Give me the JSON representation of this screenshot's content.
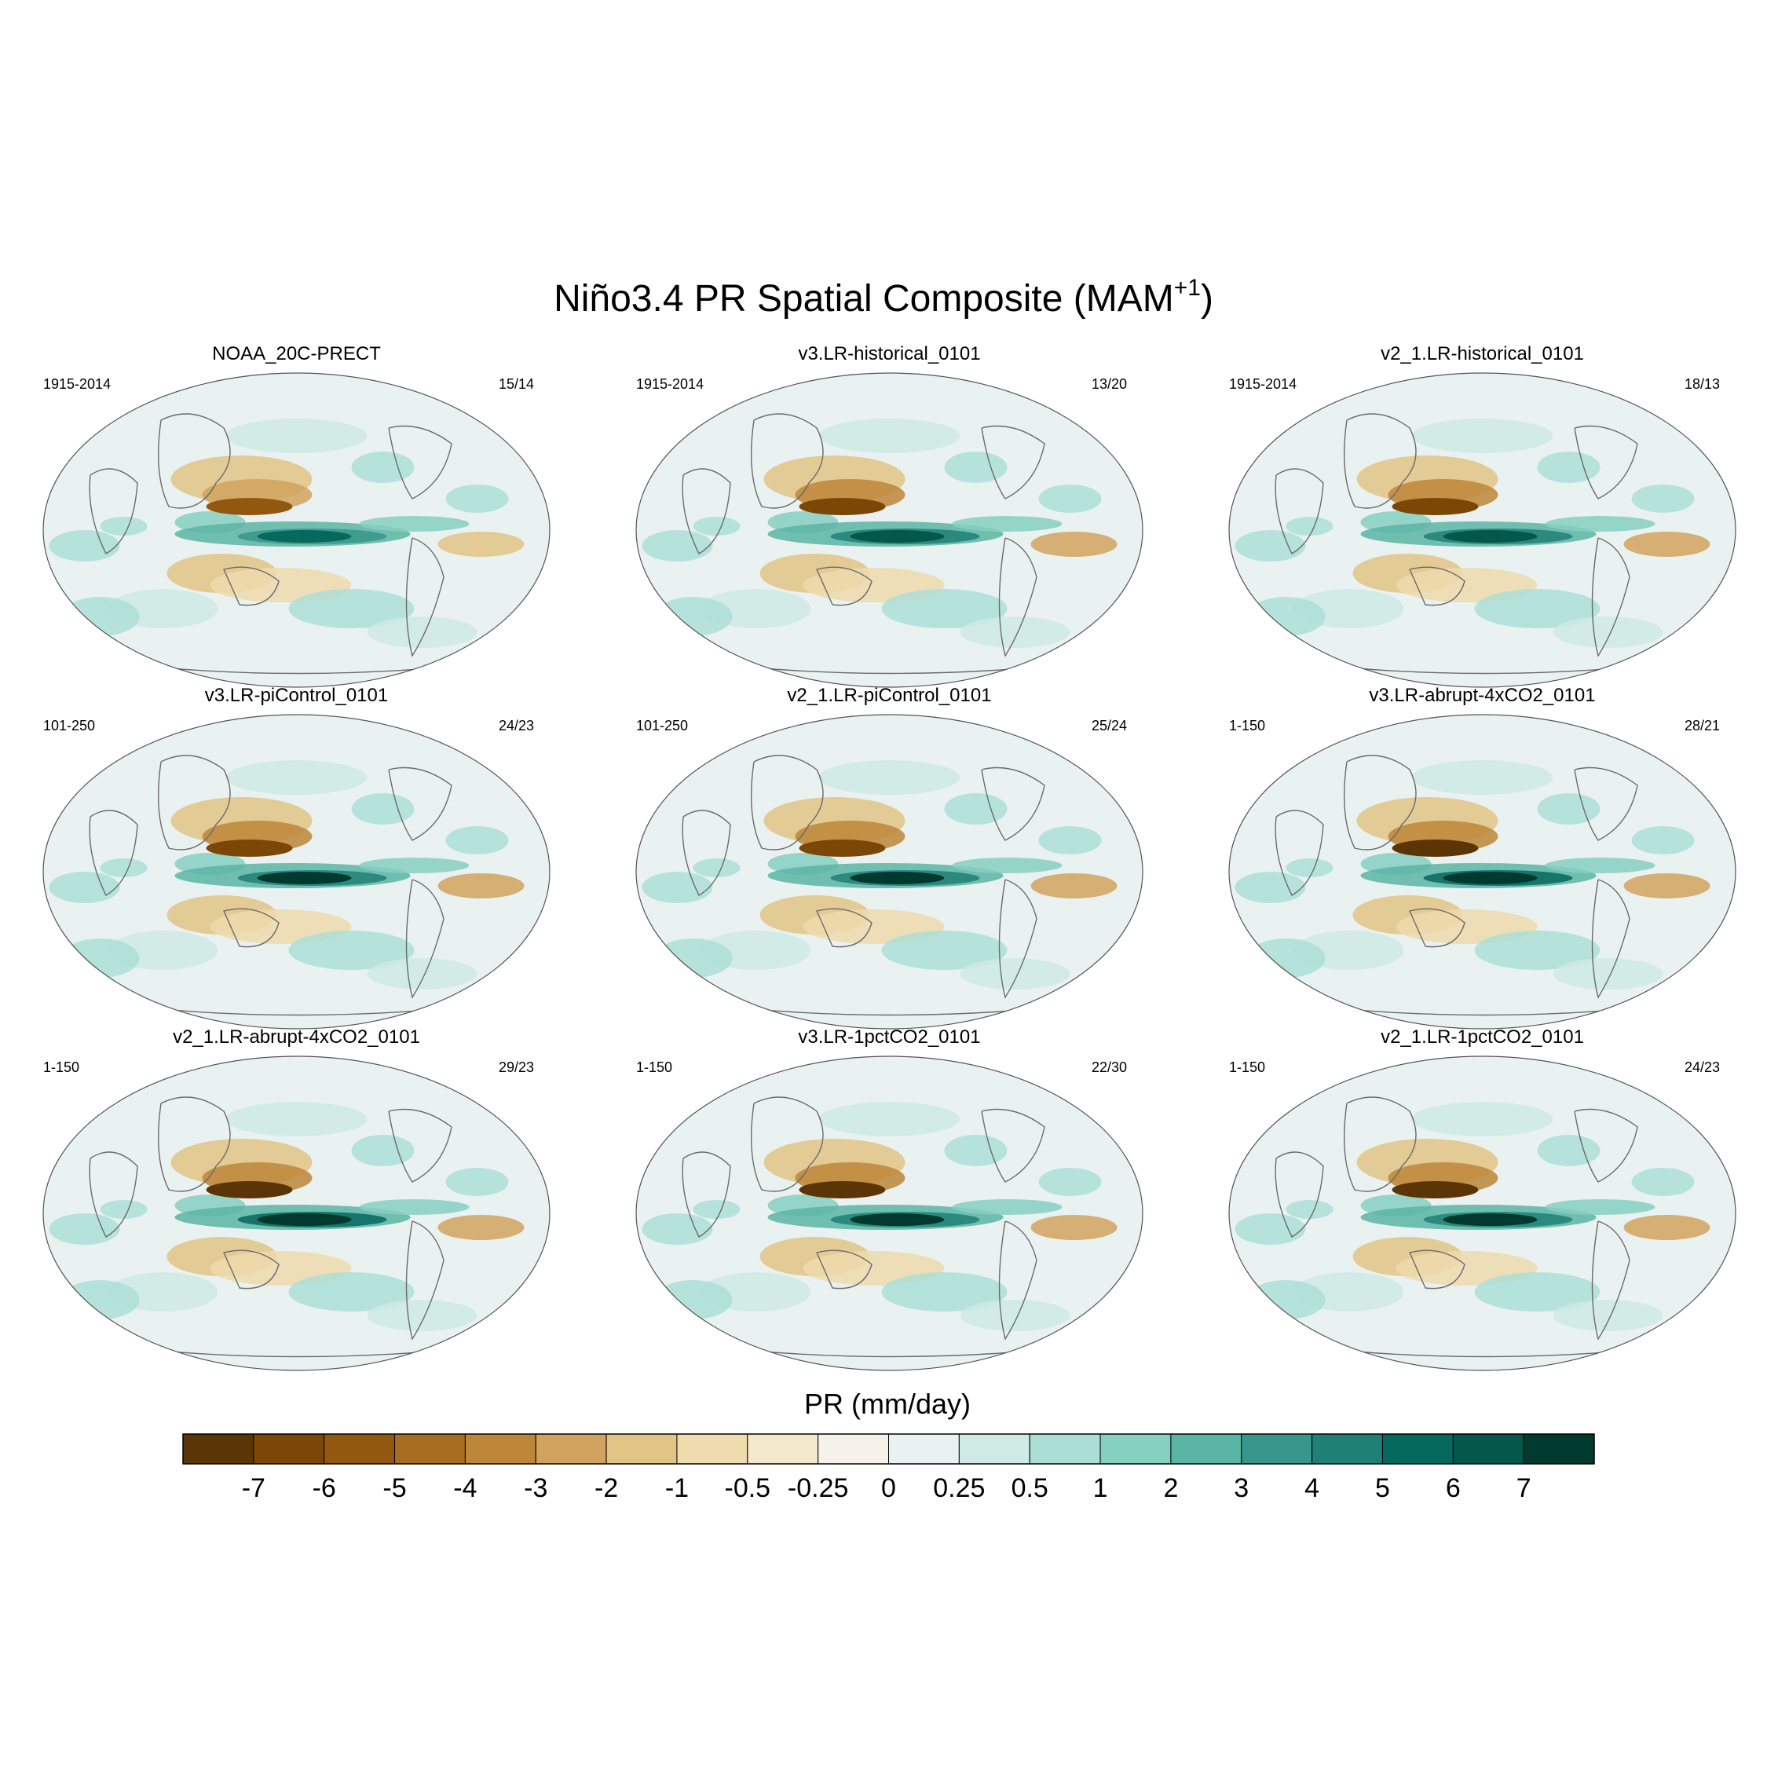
{
  "figure": {
    "title_main": "Niño3.4 PR Spatial Composite (MAM",
    "title_sup": "+1",
    "title_close": ")"
  },
  "chart_data": {
    "type": "heatmap",
    "projection": "Robinson (global maps)",
    "variable": "PR",
    "units": "mm/day",
    "colorbar": {
      "label": "PR (mm/day)",
      "levels": [
        "-7",
        "-6",
        "-5",
        "-4",
        "-3",
        "-2",
        "-1",
        "-0.5",
        "-0.25",
        "0",
        "0.25",
        "0.5",
        "1",
        "2",
        "3",
        "4",
        "5",
        "6",
        "7"
      ],
      "colors": [
        "#5b3506",
        "#7a4707",
        "#93580f",
        "#a86d20",
        "#bd8638",
        "#d1a35e",
        "#e2c486",
        "#efdbae",
        "#f5e9cd",
        "#f6f2ea",
        "#eaf2f1",
        "#cfeae5",
        "#abdfd6",
        "#86d0c2",
        "#5ab5a5",
        "#36978a",
        "#1f8076",
        "#06695e",
        "#04574b",
        "#003a2f"
      ]
    },
    "panels": [
      {
        "name": "NOAA_20C-PRECT",
        "years": "1915-2014",
        "counts": "15/14",
        "strength": 0.55
      },
      {
        "name": "v3.LR-historical_0101",
        "years": "1915-2014",
        "counts": "13/20",
        "strength": 0.85
      },
      {
        "name": "v2_1.LR-historical_0101",
        "years": "1915-2014",
        "counts": "18/13",
        "strength": 0.85
      },
      {
        "name": "v3.LR-piControl_0101",
        "years": "101-250",
        "counts": "24/23",
        "strength": 0.9
      },
      {
        "name": "v2_1.LR-piControl_0101",
        "years": "101-250",
        "counts": "25/24",
        "strength": 0.9
      },
      {
        "name": "v3.LR-abrupt-4xCO2_0101",
        "years": "1-150",
        "counts": "28/21",
        "strength": 1.0
      },
      {
        "name": "v2_1.LR-abrupt-4xCO2_0101",
        "years": "1-150",
        "counts": "29/23",
        "strength": 1.0
      },
      {
        "name": "v3.LR-1pctCO2_0101",
        "years": "1-150",
        "counts": "22/30",
        "strength": 0.95
      },
      {
        "name": "v2_1.LR-1pctCO2_0101",
        "years": "1-150",
        "counts": "24/23",
        "strength": 0.95
      }
    ]
  }
}
